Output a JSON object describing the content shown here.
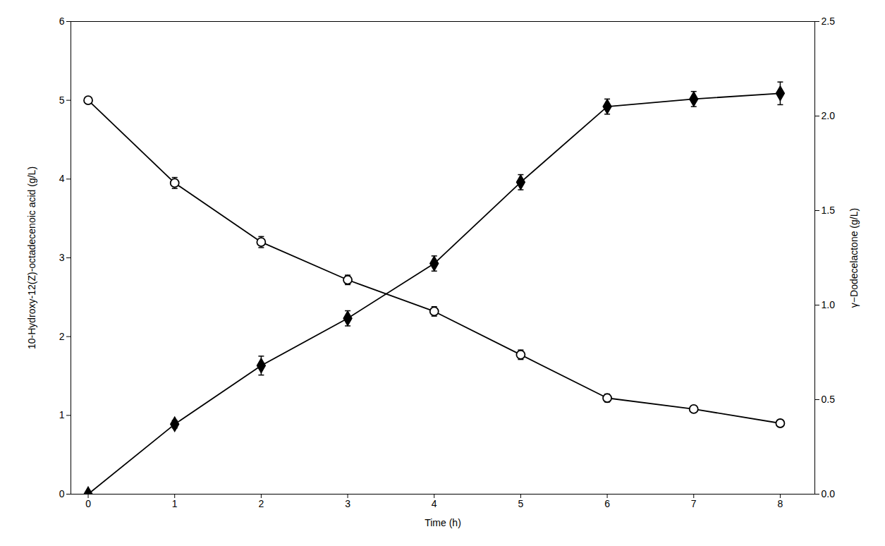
{
  "chart_data": {
    "type": "line",
    "xlabel": "Time (h)",
    "ylabel": "10-Hydroxy-12(Z)-octadecenoic acid (g/L)",
    "y2label": "γ−Dodecelactone (g/L)",
    "x": [
      0,
      1,
      2,
      3,
      4,
      5,
      6,
      7,
      8
    ],
    "series": [
      {
        "color": "#000000",
        "marker": "circle",
        "values": [
          5.0,
          3.95,
          3.2,
          2.72,
          2.32,
          1.77,
          1.22,
          1.08,
          0.9
        ],
        "yerr": [
          0.04,
          0.07,
          0.07,
          0.06,
          0.06,
          0.06,
          0.05,
          0.04,
          0.04
        ]
      },
      {
        "axis": "y2",
        "color": "#000000",
        "marker": "diamond",
        "values": [
          0.0,
          0.37,
          0.68,
          0.93,
          1.22,
          1.65,
          2.05,
          2.09,
          2.12
        ],
        "yerr": [
          0.0,
          0.02,
          0.05,
          0.04,
          0.04,
          0.04,
          0.04,
          0.04,
          0.06
        ]
      }
    ],
    "xlim": [
      -0.2,
      8.4
    ],
    "xticks": [
      0,
      1,
      2,
      3,
      4,
      5,
      6,
      7,
      8
    ],
    "ylim": [
      0,
      6
    ],
    "yticks": [
      0,
      1,
      2,
      3,
      4,
      5,
      6
    ],
    "y2lim": [
      0.0,
      2.5
    ],
    "y2ticks": [
      {
        "value": 0,
        "label": "0.0"
      },
      0.5,
      {
        "value": 1,
        "label": "1.0"
      },
      1.5,
      {
        "value": 2,
        "label": "2.0"
      },
      2.5
    ],
    "grid": false
  }
}
